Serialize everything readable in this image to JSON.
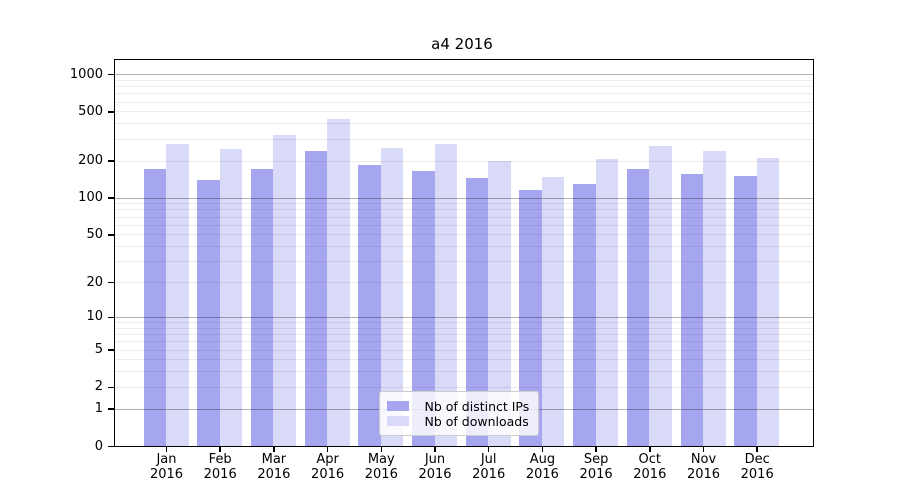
{
  "title": "a4 2016",
  "chart_data": {
    "type": "bar",
    "title": "a4 2016",
    "categories": [
      "Jan",
      "Feb",
      "Mar",
      "Apr",
      "May",
      "Jun",
      "Jul",
      "Aug",
      "Sep",
      "Oct",
      "Nov",
      "Dec"
    ],
    "category_year_label": "2016",
    "series": [
      {
        "name": "Nb of distinct IPs",
        "color": "#a6a6f0",
        "values": [
          170,
          140,
          170,
          240,
          183,
          165,
          145,
          115,
          130,
          172,
          157,
          150
        ]
      },
      {
        "name": "Nb of downloads",
        "color": "#d9d9f8",
        "values": [
          270,
          250,
          320,
          435,
          255,
          270,
          200,
          146,
          205,
          260,
          240,
          208
        ]
      }
    ],
    "xlabel": "",
    "ylabel": "",
    "yscale": "symlog",
    "yticks": [
      0,
      1,
      2,
      5,
      10,
      20,
      50,
      100,
      200,
      500,
      1000
    ],
    "ylim": [
      0,
      1300
    ],
    "grid": true,
    "grid_major_color": "#b3b3b3",
    "grid_minor_color": "#ececec",
    "axis_color": "#000000",
    "legend_position": "lower center"
  }
}
